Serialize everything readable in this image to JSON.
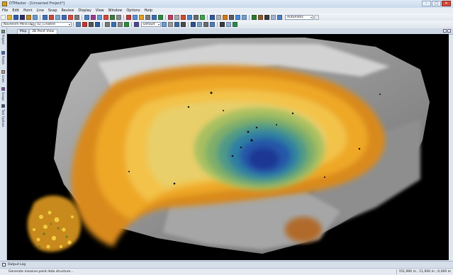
{
  "window": {
    "title": "DTMaster - [Unnamed Project*]"
  },
  "window_buttons": {
    "minimize": "–",
    "maximize": "□",
    "close": "✕"
  },
  "menu": [
    "File",
    "Edit",
    "Point",
    "Line",
    "Snap",
    "Review",
    "Display",
    "View",
    "Window",
    "Options",
    "Help"
  ],
  "toolbar": {
    "row1_icon_colors": [
      "#f4f4f4",
      "#e3b13a",
      "#2d5fa8",
      "#2f2f6a",
      "#c08a2a",
      "#6b9ac8",
      "#3f74b6",
      "#c94a3a",
      "#7aa8d8",
      "#3e6bb0",
      "#d94a3b",
      "#7c7c7c",
      "#4a7fc0",
      "#9c3b8c",
      "#6a9ad0",
      "#d24a3a",
      "#3f7a3f",
      "#8a8a8a",
      "#c23b3b",
      "#5b8fd0",
      "#e0a020",
      "#7b7b7b",
      "#3b6fb0",
      "#2e8a3e",
      "#c04060",
      "#a7a7a7",
      "#d34a2a",
      "#4a86c8",
      "#6a6a6a",
      "#3aa64a",
      "#2e5aa0",
      "#b0b0b0",
      "#d47a1a",
      "#5c5c5c",
      "#4a8ad8",
      "#70a0d0",
      "#2b7a2b",
      "#8a5a2a",
      "#3a3a3a",
      "#9fb4d0",
      "#4d7ec0"
    ],
    "row1_combo": "Automatic",
    "row2_left_combo": "Naveenm Mine.las",
    "row2_mid_combo": "02_Created",
    "row2_render_combo": "Default",
    "row2_icon_colors": [
      "#5b7fb0",
      "#c0392b",
      "#555555",
      "#2e5aa0",
      "#7a7a7a",
      "#3b6fb0",
      "#8a8a8a",
      "#2e8a3e",
      "#4a4a8a",
      "#6a9ad0",
      "#9a9a9a",
      "#3a6aa0",
      "#4a4a4a",
      "#2d4f8a",
      "#7aa0c8",
      "#6b6b6b",
      "#4e7db8",
      "#3a3a3a",
      "#8fb0d8",
      "#2c8a4a"
    ]
  },
  "sidebar": {
    "tabs": [
      "Project",
      "Points",
      "Lines",
      "Snaps",
      "Task Options"
    ]
  },
  "doc_tabs": [
    "Map",
    "3D Point View"
  ],
  "active_doc_tab": "3D Point View",
  "output_log": {
    "label": "Output Log"
  },
  "status": {
    "message": "Generate massive point data structure...",
    "coords": "151,900 m ; 11,000 m ; 0,000 m"
  }
}
